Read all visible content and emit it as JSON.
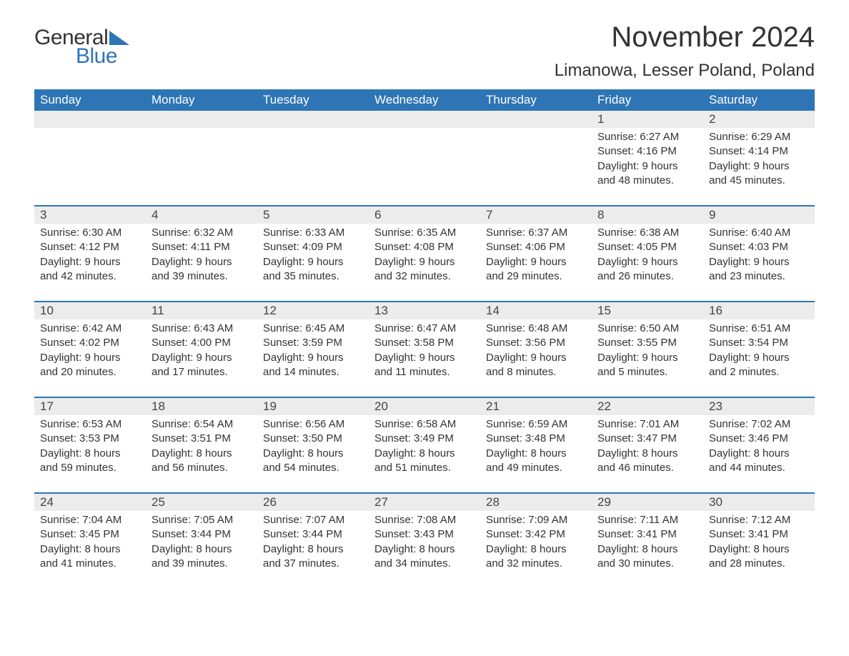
{
  "brand": {
    "left": "General",
    "right": "Blue",
    "accent_color": "#2e75b6"
  },
  "title": "November 2024",
  "location": "Limanowa, Lesser Poland, Poland",
  "colors": {
    "header_bg": "#2e75b6",
    "header_text": "#ffffff",
    "daynum_bg": "#ececec",
    "text": "#333333",
    "row_border": "#2e75b6",
    "background": "#ffffff"
  },
  "typography": {
    "title_fontsize": 40,
    "location_fontsize": 24,
    "weekday_fontsize": 17,
    "daynum_fontsize": 17,
    "body_fontsize": 15
  },
  "layout": {
    "columns": 7,
    "rows": 5
  },
  "weekdays": [
    "Sunday",
    "Monday",
    "Tuesday",
    "Wednesday",
    "Thursday",
    "Friday",
    "Saturday"
  ],
  "weeks": [
    {
      "days": [
        {
          "num": "",
          "sunrise": "",
          "sunset": "",
          "daylight": ""
        },
        {
          "num": "",
          "sunrise": "",
          "sunset": "",
          "daylight": ""
        },
        {
          "num": "",
          "sunrise": "",
          "sunset": "",
          "daylight": ""
        },
        {
          "num": "",
          "sunrise": "",
          "sunset": "",
          "daylight": ""
        },
        {
          "num": "",
          "sunrise": "",
          "sunset": "",
          "daylight": ""
        },
        {
          "num": "1",
          "sunrise": "Sunrise: 6:27 AM",
          "sunset": "Sunset: 4:16 PM",
          "daylight": "Daylight: 9 hours and 48 minutes."
        },
        {
          "num": "2",
          "sunrise": "Sunrise: 6:29 AM",
          "sunset": "Sunset: 4:14 PM",
          "daylight": "Daylight: 9 hours and 45 minutes."
        }
      ]
    },
    {
      "days": [
        {
          "num": "3",
          "sunrise": "Sunrise: 6:30 AM",
          "sunset": "Sunset: 4:12 PM",
          "daylight": "Daylight: 9 hours and 42 minutes."
        },
        {
          "num": "4",
          "sunrise": "Sunrise: 6:32 AM",
          "sunset": "Sunset: 4:11 PM",
          "daylight": "Daylight: 9 hours and 39 minutes."
        },
        {
          "num": "5",
          "sunrise": "Sunrise: 6:33 AM",
          "sunset": "Sunset: 4:09 PM",
          "daylight": "Daylight: 9 hours and 35 minutes."
        },
        {
          "num": "6",
          "sunrise": "Sunrise: 6:35 AM",
          "sunset": "Sunset: 4:08 PM",
          "daylight": "Daylight: 9 hours and 32 minutes."
        },
        {
          "num": "7",
          "sunrise": "Sunrise: 6:37 AM",
          "sunset": "Sunset: 4:06 PM",
          "daylight": "Daylight: 9 hours and 29 minutes."
        },
        {
          "num": "8",
          "sunrise": "Sunrise: 6:38 AM",
          "sunset": "Sunset: 4:05 PM",
          "daylight": "Daylight: 9 hours and 26 minutes."
        },
        {
          "num": "9",
          "sunrise": "Sunrise: 6:40 AM",
          "sunset": "Sunset: 4:03 PM",
          "daylight": "Daylight: 9 hours and 23 minutes."
        }
      ]
    },
    {
      "days": [
        {
          "num": "10",
          "sunrise": "Sunrise: 6:42 AM",
          "sunset": "Sunset: 4:02 PM",
          "daylight": "Daylight: 9 hours and 20 minutes."
        },
        {
          "num": "11",
          "sunrise": "Sunrise: 6:43 AM",
          "sunset": "Sunset: 4:00 PM",
          "daylight": "Daylight: 9 hours and 17 minutes."
        },
        {
          "num": "12",
          "sunrise": "Sunrise: 6:45 AM",
          "sunset": "Sunset: 3:59 PM",
          "daylight": "Daylight: 9 hours and 14 minutes."
        },
        {
          "num": "13",
          "sunrise": "Sunrise: 6:47 AM",
          "sunset": "Sunset: 3:58 PM",
          "daylight": "Daylight: 9 hours and 11 minutes."
        },
        {
          "num": "14",
          "sunrise": "Sunrise: 6:48 AM",
          "sunset": "Sunset: 3:56 PM",
          "daylight": "Daylight: 9 hours and 8 minutes."
        },
        {
          "num": "15",
          "sunrise": "Sunrise: 6:50 AM",
          "sunset": "Sunset: 3:55 PM",
          "daylight": "Daylight: 9 hours and 5 minutes."
        },
        {
          "num": "16",
          "sunrise": "Sunrise: 6:51 AM",
          "sunset": "Sunset: 3:54 PM",
          "daylight": "Daylight: 9 hours and 2 minutes."
        }
      ]
    },
    {
      "days": [
        {
          "num": "17",
          "sunrise": "Sunrise: 6:53 AM",
          "sunset": "Sunset: 3:53 PM",
          "daylight": "Daylight: 8 hours and 59 minutes."
        },
        {
          "num": "18",
          "sunrise": "Sunrise: 6:54 AM",
          "sunset": "Sunset: 3:51 PM",
          "daylight": "Daylight: 8 hours and 56 minutes."
        },
        {
          "num": "19",
          "sunrise": "Sunrise: 6:56 AM",
          "sunset": "Sunset: 3:50 PM",
          "daylight": "Daylight: 8 hours and 54 minutes."
        },
        {
          "num": "20",
          "sunrise": "Sunrise: 6:58 AM",
          "sunset": "Sunset: 3:49 PM",
          "daylight": "Daylight: 8 hours and 51 minutes."
        },
        {
          "num": "21",
          "sunrise": "Sunrise: 6:59 AM",
          "sunset": "Sunset: 3:48 PM",
          "daylight": "Daylight: 8 hours and 49 minutes."
        },
        {
          "num": "22",
          "sunrise": "Sunrise: 7:01 AM",
          "sunset": "Sunset: 3:47 PM",
          "daylight": "Daylight: 8 hours and 46 minutes."
        },
        {
          "num": "23",
          "sunrise": "Sunrise: 7:02 AM",
          "sunset": "Sunset: 3:46 PM",
          "daylight": "Daylight: 8 hours and 44 minutes."
        }
      ]
    },
    {
      "days": [
        {
          "num": "24",
          "sunrise": "Sunrise: 7:04 AM",
          "sunset": "Sunset: 3:45 PM",
          "daylight": "Daylight: 8 hours and 41 minutes."
        },
        {
          "num": "25",
          "sunrise": "Sunrise: 7:05 AM",
          "sunset": "Sunset: 3:44 PM",
          "daylight": "Daylight: 8 hours and 39 minutes."
        },
        {
          "num": "26",
          "sunrise": "Sunrise: 7:07 AM",
          "sunset": "Sunset: 3:44 PM",
          "daylight": "Daylight: 8 hours and 37 minutes."
        },
        {
          "num": "27",
          "sunrise": "Sunrise: 7:08 AM",
          "sunset": "Sunset: 3:43 PM",
          "daylight": "Daylight: 8 hours and 34 minutes."
        },
        {
          "num": "28",
          "sunrise": "Sunrise: 7:09 AM",
          "sunset": "Sunset: 3:42 PM",
          "daylight": "Daylight: 8 hours and 32 minutes."
        },
        {
          "num": "29",
          "sunrise": "Sunrise: 7:11 AM",
          "sunset": "Sunset: 3:41 PM",
          "daylight": "Daylight: 8 hours and 30 minutes."
        },
        {
          "num": "30",
          "sunrise": "Sunrise: 7:12 AM",
          "sunset": "Sunset: 3:41 PM",
          "daylight": "Daylight: 8 hours and 28 minutes."
        }
      ]
    }
  ]
}
